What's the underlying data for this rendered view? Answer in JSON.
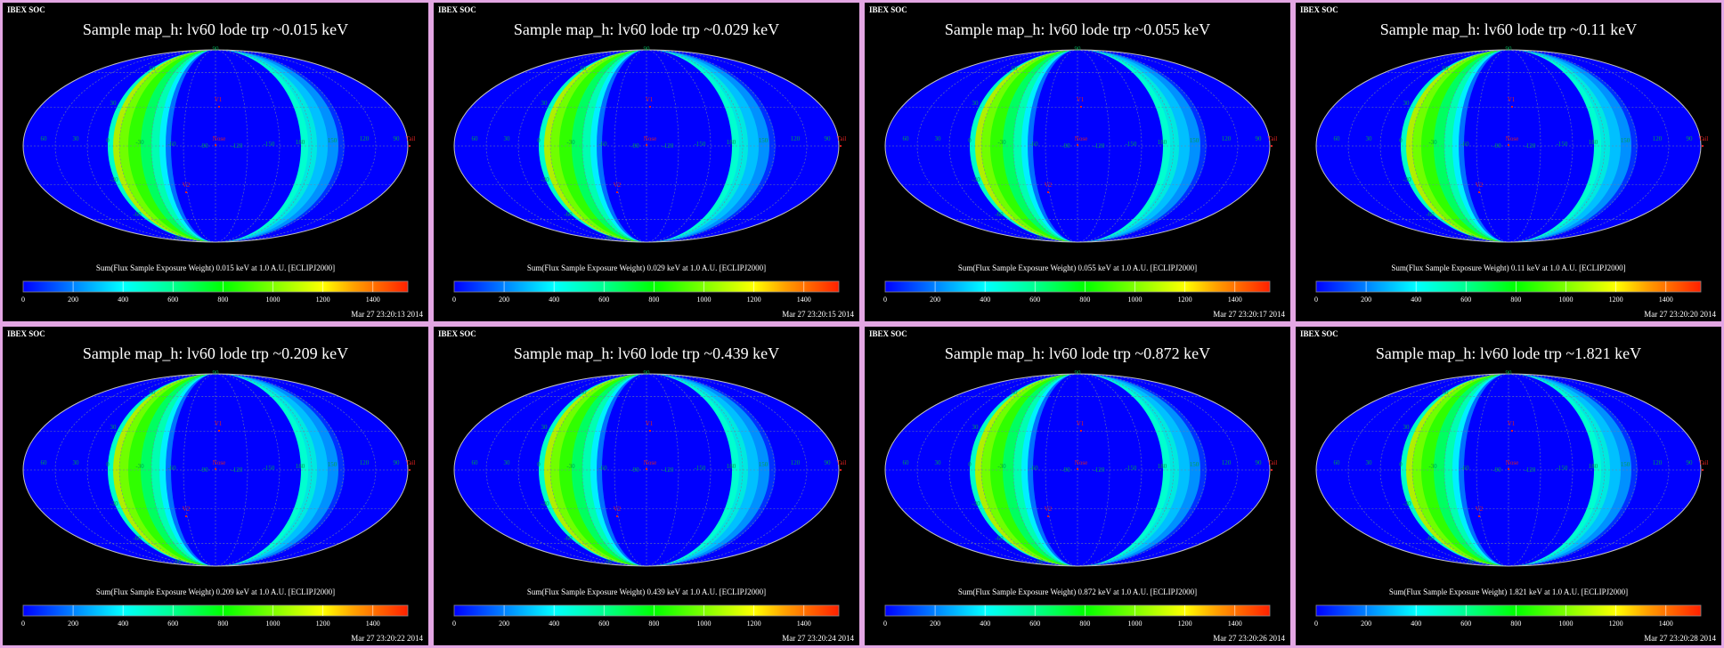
{
  "colors": {
    "border": "#e3a6e3",
    "background": "#000000",
    "sky_base": "#0000ff",
    "marker": "#e02020",
    "grid_label": "#00a050"
  },
  "chart_data": {
    "type": "heatmap",
    "projection": "Mollweide",
    "header": "IBEX SOC",
    "frame": "ECLIPJ2000",
    "colorbar": {
      "ticks": [
        "0",
        "200",
        "400",
        "600",
        "800",
        "1000",
        "1200",
        "1400"
      ],
      "range": [
        0,
        1540
      ],
      "stops": [
        [
          "#0000ff",
          0
        ],
        [
          "#00a0ff",
          0.16
        ],
        [
          "#00ffff",
          0.26
        ],
        [
          "#00ff90",
          0.39
        ],
        [
          "#00ff00",
          0.52
        ],
        [
          "#80ff00",
          0.65
        ],
        [
          "#ffff00",
          0.78
        ],
        [
          "#ffa000",
          0.86
        ],
        [
          "#ff2000",
          1
        ]
      ]
    },
    "longitude_labels": [
      "60",
      "30",
      "0",
      "-30",
      "-60",
      "-90",
      "-120",
      "-150",
      "180",
      "150",
      "120",
      "90"
    ],
    "latitude_labels": [
      "90",
      "60",
      "30",
      "-30",
      "-60",
      "-90"
    ],
    "markers": [
      "V1",
      "Nose",
      "V2",
      "Tail"
    ],
    "maps": [
      {
        "title": "Sample map_h: lv60 lode trp ~0.015 keV",
        "colorbar_label": "Sum(Flux Sample Exposure Weight)  0.015 keV at 1.0 A.U. [ECLIPJ2000]",
        "timestamp": "Mar 27 23:20:13 2014"
      },
      {
        "title": "Sample map_h: lv60 lode trp ~0.029 keV",
        "colorbar_label": "Sum(Flux Sample Exposure Weight)  0.029 keV at 1.0 A.U. [ECLIPJ2000]",
        "timestamp": "Mar 27 23:20:15 2014"
      },
      {
        "title": "Sample map_h: lv60 lode trp ~0.055 keV",
        "colorbar_label": "Sum(Flux Sample Exposure Weight)  0.055 keV at 1.0 A.U. [ECLIPJ2000]",
        "timestamp": "Mar 27 23:20:17 2014"
      },
      {
        "title": "Sample map_h: lv60 lode trp ~0.11 keV",
        "colorbar_label": "Sum(Flux Sample Exposure Weight)  0.11 keV at 1.0 A.U. [ECLIPJ2000]",
        "timestamp": "Mar 27 23:20:20 2014"
      },
      {
        "title": "Sample map_h: lv60 lode trp ~0.209 keV",
        "colorbar_label": "Sum(Flux Sample Exposure Weight)  0.209 keV at 1.0 A.U. [ECLIPJ2000]",
        "timestamp": "Mar 27 23:20:22 2014"
      },
      {
        "title": "Sample map_h: lv60 lode trp ~0.439 keV",
        "colorbar_label": "Sum(Flux Sample Exposure Weight)  0.439 keV at 1.0 A.U. [ECLIPJ2000]",
        "timestamp": "Mar 27 23:20:24 2014"
      },
      {
        "title": "Sample map_h: lv60 lode trp ~0.872 keV",
        "colorbar_label": "Sum(Flux Sample Exposure Weight)  0.872 keV at 1.0 A.U. [ECLIPJ2000]",
        "timestamp": "Mar 27 23:20:26 2014"
      },
      {
        "title": "Sample map_h: lv60 lode trp ~1.821 keV",
        "colorbar_label": "Sum(Flux Sample Exposure Weight)  1.821 keV at 1.0 A.U. [ECLIPJ2000]",
        "timestamp": "Mar 27 23:20:28 2014"
      }
    ]
  }
}
